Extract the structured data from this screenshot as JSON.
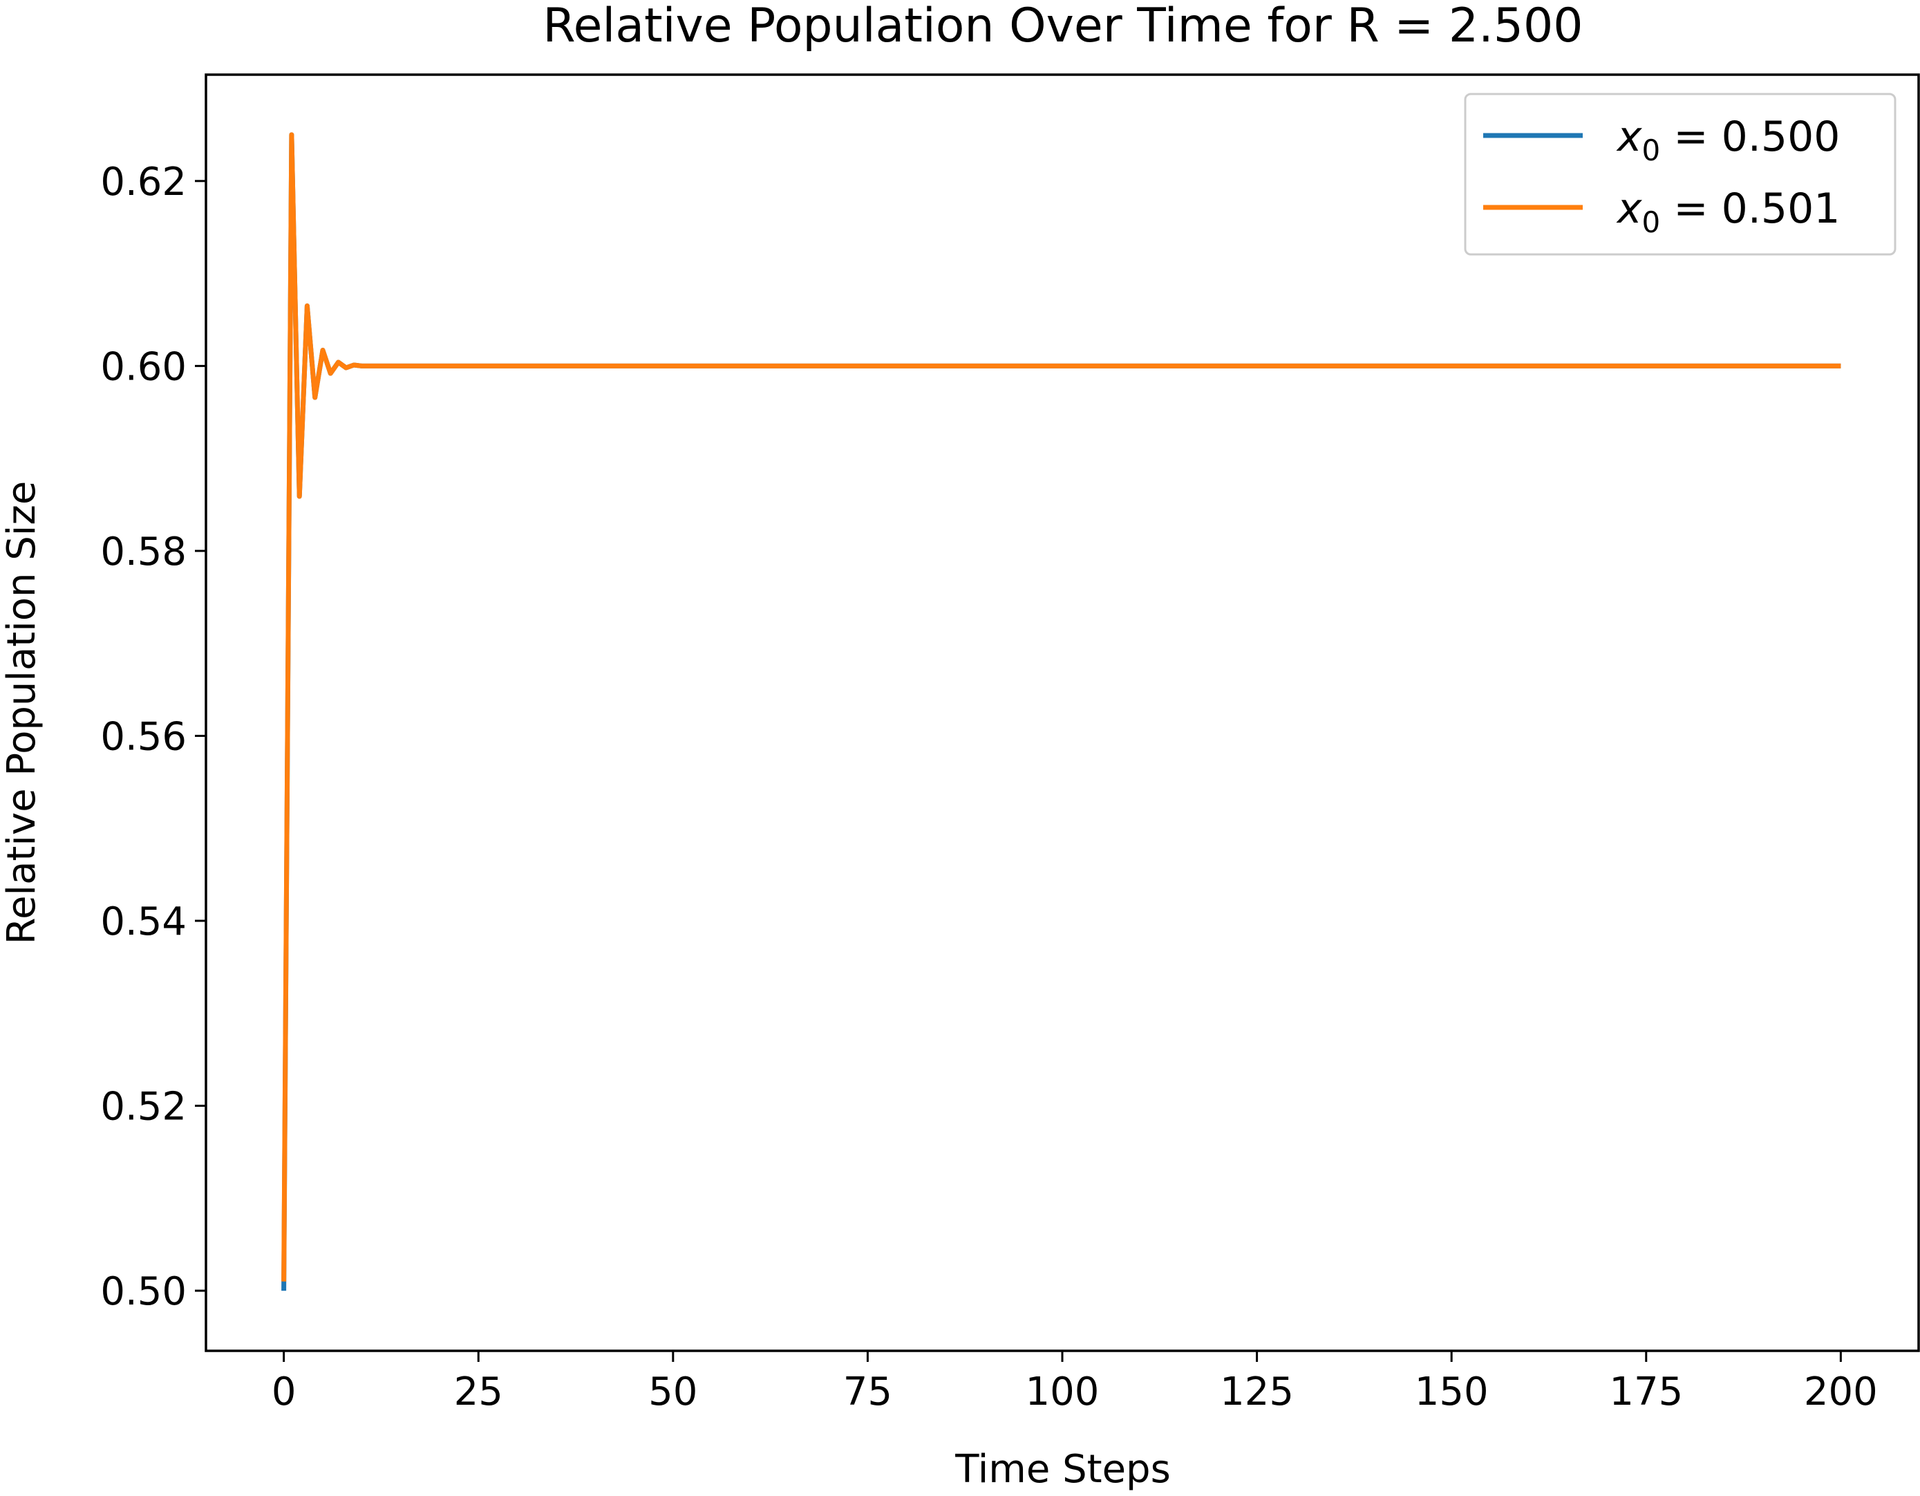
{
  "chart_data": {
    "type": "line",
    "title": "Relative Population Over Time for R = 2.500",
    "xlabel": "Time Steps",
    "ylabel": "Relative Population Size",
    "xlim": [
      -10,
      210
    ],
    "ylim": [
      0.4935,
      0.6315
    ],
    "xticks": [
      0,
      25,
      50,
      75,
      100,
      125,
      150,
      175,
      200
    ],
    "xtick_labels": [
      "0",
      "25",
      "50",
      "75",
      "100",
      "125",
      "150",
      "175",
      "200"
    ],
    "yticks": [
      0.5,
      0.52,
      0.54,
      0.56,
      0.58,
      0.6,
      0.62
    ],
    "ytick_labels": [
      "0.50",
      "0.52",
      "0.54",
      "0.56",
      "0.58",
      "0.60",
      "0.62"
    ],
    "grid": false,
    "legend_position": "top-right",
    "model": {
      "R": 2.5,
      "steps": 200
    },
    "series": [
      {
        "name": "x0 = 0.500",
        "legend": {
          "var": "x",
          "sub": "0",
          "rest": " = 0.500"
        },
        "color": "#1f77b4",
        "x0": 0.5,
        "x": [
          0,
          1,
          2,
          3,
          4,
          5,
          6,
          7,
          8,
          9,
          10,
          200
        ],
        "values": [
          0.5,
          0.625,
          0.5859,
          0.6065,
          0.5966,
          0.6017,
          0.5992,
          0.6004,
          0.5998,
          0.6001,
          0.6,
          0.6
        ]
      },
      {
        "name": "x0 = 0.501",
        "legend": {
          "var": "x",
          "sub": "0",
          "rest": " = 0.501"
        },
        "color": "#ff7f0e",
        "x0": 0.501,
        "x": [
          0,
          1,
          2,
          3,
          4,
          5,
          6,
          7,
          8,
          9,
          10,
          200
        ],
        "values": [
          0.501,
          0.625,
          0.5859,
          0.6065,
          0.5966,
          0.6017,
          0.5992,
          0.6004,
          0.5998,
          0.6001,
          0.6,
          0.6
        ]
      }
    ]
  }
}
